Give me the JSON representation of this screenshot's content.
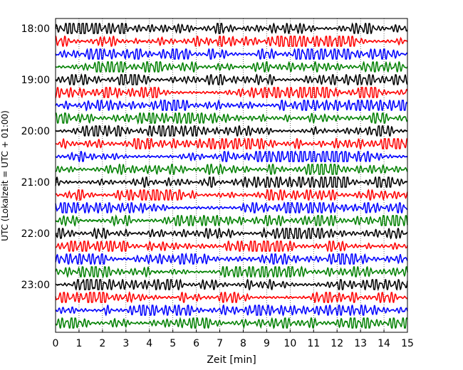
{
  "chart_data": {
    "type": "line",
    "title": "",
    "xlabel": "Zeit  [min]",
    "ylabel": "UTC (Lokalzeit = UTC + 01:00)",
    "xlim": [
      0,
      15
    ],
    "x_ticks": [
      "0",
      "1",
      "2",
      "3",
      "4",
      "5",
      "6",
      "7",
      "8",
      "9",
      "10",
      "11",
      "12",
      "13",
      "14",
      "15"
    ],
    "y_tick_labels": [
      "18:00",
      "19:00",
      "20:00",
      "21:00",
      "22:00",
      "23:00"
    ],
    "grid": "vertical dotted at each minute",
    "trace_interval_min": 15,
    "trace_count": 24,
    "trace_colors": [
      "#000000",
      "#ff0000",
      "#0000ff",
      "#008000"
    ],
    "series": [
      {
        "start": "18:00",
        "color": "#000000"
      },
      {
        "start": "18:15",
        "color": "#ff0000"
      },
      {
        "start": "18:30",
        "color": "#0000ff"
      },
      {
        "start": "18:45",
        "color": "#008000"
      },
      {
        "start": "19:00",
        "color": "#000000"
      },
      {
        "start": "19:15",
        "color": "#ff0000"
      },
      {
        "start": "19:30",
        "color": "#0000ff"
      },
      {
        "start": "19:45",
        "color": "#008000"
      },
      {
        "start": "20:00",
        "color": "#000000"
      },
      {
        "start": "20:15",
        "color": "#ff0000"
      },
      {
        "start": "20:30",
        "color": "#0000ff"
      },
      {
        "start": "20:45",
        "color": "#008000"
      },
      {
        "start": "21:00",
        "color": "#000000"
      },
      {
        "start": "21:15",
        "color": "#ff0000"
      },
      {
        "start": "21:30",
        "color": "#0000ff"
      },
      {
        "start": "21:45",
        "color": "#008000"
      },
      {
        "start": "22:00",
        "color": "#000000"
      },
      {
        "start": "22:15",
        "color": "#ff0000"
      },
      {
        "start": "22:30",
        "color": "#0000ff"
      },
      {
        "start": "22:45",
        "color": "#008000"
      },
      {
        "start": "23:00",
        "color": "#000000"
      },
      {
        "start": "23:15",
        "color": "#ff0000"
      },
      {
        "start": "23:30",
        "color": "#0000ff"
      },
      {
        "start": "23:45",
        "color": "#008000"
      }
    ]
  }
}
